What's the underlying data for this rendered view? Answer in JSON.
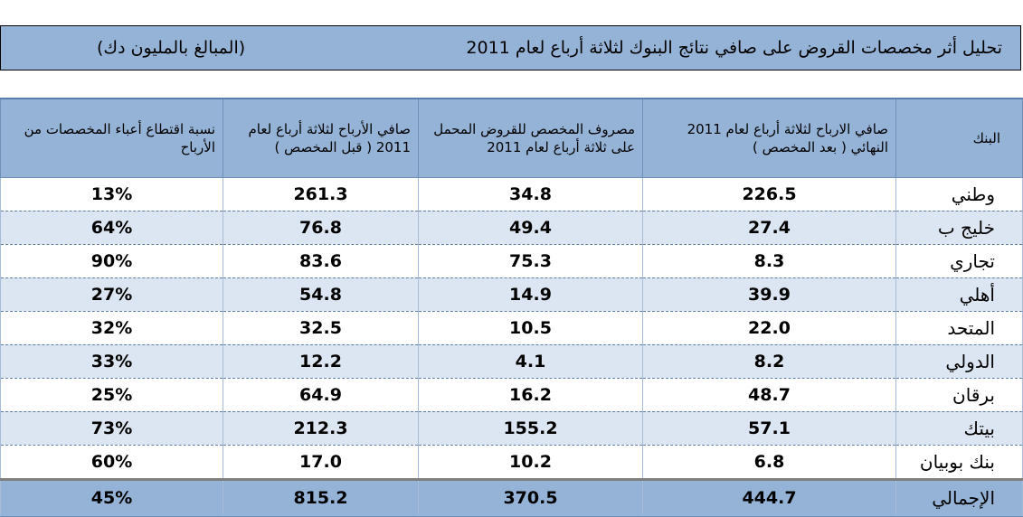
{
  "title": {
    "main": "تحليل أثر مخصصات القروض على صافي نتائج البنوك لثلاثة أرباع لعام 2011",
    "unit": "(المبالغ بالمليون دك)"
  },
  "table": {
    "headers": {
      "ratio": "نسبة اقتطاع أعباء المخصصات من الأرباح",
      "profit_before": "صافي الأرباح لثلاثة أرباع لعام 2011 ( قبل المخصص )",
      "provision": "مصروف المخصص للقروض المحمل على ثلاثة أرباع لعام 2011",
      "profit_after": "صافي الارباح لثلاثة أرباع لعام 2011 النهائي ( بعد المخصص )",
      "bank": "البنك"
    },
    "rows": [
      {
        "bank": "وطني",
        "profit_after": "226.5",
        "provision": "34.8",
        "profit_before": "261.3",
        "ratio": "13%"
      },
      {
        "bank": "خليج ب",
        "profit_after": "27.4",
        "provision": "49.4",
        "profit_before": "76.8",
        "ratio": "64%"
      },
      {
        "bank": "تجاري",
        "profit_after": "8.3",
        "provision": "75.3",
        "profit_before": "83.6",
        "ratio": "90%"
      },
      {
        "bank": "أهلي",
        "profit_after": "39.9",
        "provision": "14.9",
        "profit_before": "54.8",
        "ratio": "27%"
      },
      {
        "bank": "المتحد",
        "profit_after": "22.0",
        "provision": "10.5",
        "profit_before": "32.5",
        "ratio": "32%"
      },
      {
        "bank": "الدولي",
        "profit_after": "8.2",
        "provision": "4.1",
        "profit_before": "12.2",
        "ratio": "33%"
      },
      {
        "bank": "برقان",
        "profit_after": "48.7",
        "provision": "16.2",
        "profit_before": "64.9",
        "ratio": "25%"
      },
      {
        "bank": "بيتك",
        "profit_after": "57.1",
        "provision": "155.2",
        "profit_before": "212.3",
        "ratio": "73%"
      },
      {
        "bank": "بنك بوبيان",
        "profit_after": "6.8",
        "provision": "10.2",
        "profit_before": "17.0",
        "ratio": "60%"
      }
    ],
    "total": {
      "bank": "الإجمالي",
      "profit_after": "444.7",
      "provision": "370.5",
      "profit_before": "815.2",
      "ratio": "45%"
    }
  }
}
